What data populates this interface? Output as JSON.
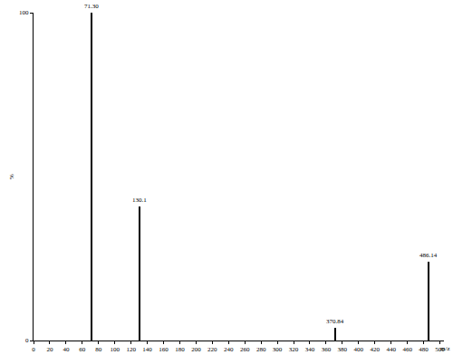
{
  "chart_data": {
    "type": "bar",
    "x": [
      71.3,
      130.1,
      370.84,
      486.14
    ],
    "values": [
      100,
      41,
      4,
      24
    ],
    "annotations": [
      "71.30",
      "130.1",
      "370.84",
      "486.14"
    ],
    "xlabel": "m/z",
    "ylabel": "%",
    "color": "#000000",
    "xlim": [
      0,
      505
    ],
    "xticks": [
      0,
      20,
      40,
      60,
      80,
      100,
      120,
      140,
      160,
      180,
      200,
      220,
      240,
      260,
      280,
      300,
      320,
      340,
      360,
      380,
      400,
      420,
      440,
      460,
      480,
      500
    ],
    "ylim": [
      0,
      100
    ],
    "yticks": [
      0,
      100
    ],
    "grid": false
  }
}
